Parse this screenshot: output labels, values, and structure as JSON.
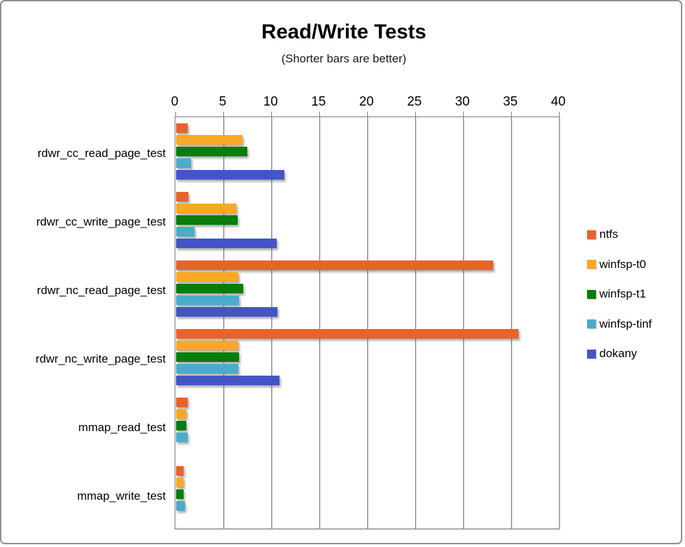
{
  "chart_data": {
    "type": "bar",
    "orientation": "horizontal",
    "title": "Read/Write Tests",
    "subtitle": "(Shorter bars are better)",
    "xlabel": "",
    "ylabel": "",
    "xlim": [
      0,
      40
    ],
    "x_ticks": [
      0,
      5,
      10,
      15,
      20,
      25,
      30,
      35,
      40
    ],
    "grid": true,
    "legend_position": "right",
    "categories": [
      "rdwr_cc_read_page_test",
      "rdwr_cc_write_page_test",
      "rdwr_nc_read_page_test",
      "rdwr_nc_write_page_test",
      "mmap_read_test",
      "mmap_write_test"
    ],
    "series": [
      {
        "name": "ntfs",
        "color": "#e8632c",
        "values": [
          1.2,
          1.3,
          33.1,
          35.7,
          1.2,
          0.8
        ]
      },
      {
        "name": "winfsp-t0",
        "color": "#f9a825",
        "values": [
          6.9,
          6.3,
          6.5,
          6.5,
          1.1,
          0.8
        ]
      },
      {
        "name": "winfsp-t1",
        "color": "#0a7c0a",
        "values": [
          7.4,
          6.4,
          7.0,
          6.6,
          1.1,
          0.8
        ]
      },
      {
        "name": "winfsp-tinf",
        "color": "#4bacc9",
        "values": [
          1.6,
          1.9,
          6.6,
          6.5,
          1.2,
          0.9
        ]
      },
      {
        "name": "dokany",
        "color": "#4355c6",
        "values": [
          11.3,
          10.5,
          10.6,
          10.8,
          0,
          0
        ]
      }
    ]
  },
  "colors": {
    "axis": "#7f7f7f",
    "frame_border": "#8e8e8e",
    "text": "#000000"
  }
}
